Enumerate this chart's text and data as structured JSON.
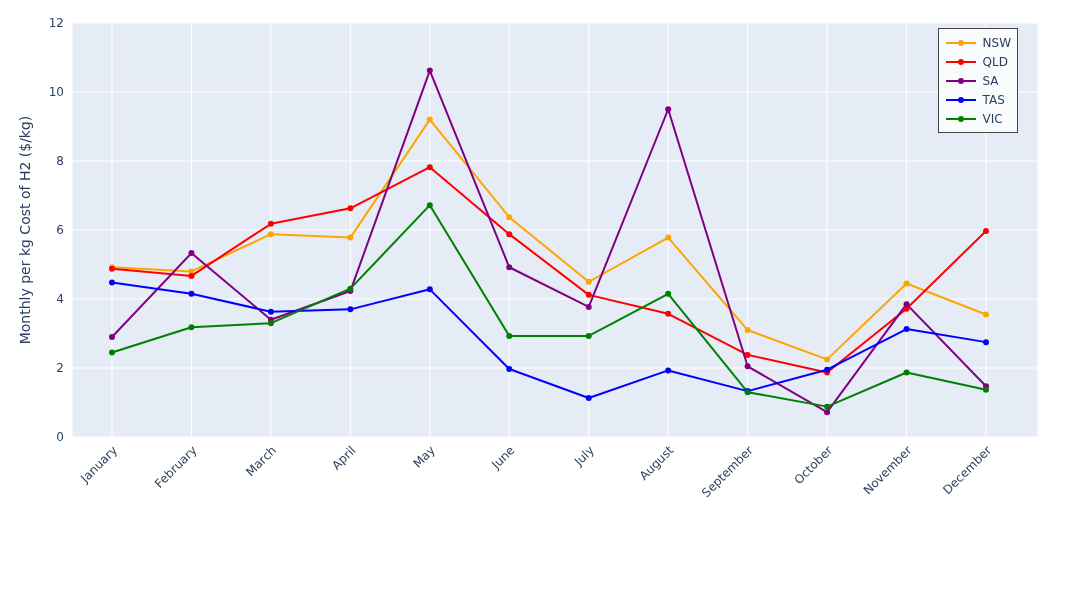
{
  "chart_data": {
    "type": "line",
    "ylabel": "Monthly per kg Cost of H2 ($/kg)",
    "categories": [
      "January",
      "February",
      "March",
      "April",
      "May",
      "June",
      "July",
      "August",
      "September",
      "October",
      "November",
      "December"
    ],
    "series": [
      {
        "name": "NSW",
        "color": "#ffa500",
        "values": [
          4.92,
          4.8,
          5.88,
          5.78,
          9.2,
          6.37,
          4.5,
          5.78,
          3.1,
          2.25,
          4.45,
          3.55
        ]
      },
      {
        "name": "QLD",
        "color": "#ff0000",
        "values": [
          4.88,
          4.67,
          6.18,
          6.63,
          7.82,
          5.88,
          4.12,
          3.57,
          2.38,
          1.87,
          3.72,
          5.97
        ]
      },
      {
        "name": "SA",
        "color": "#800080",
        "values": [
          2.9,
          5.33,
          3.4,
          4.23,
          10.62,
          4.92,
          3.77,
          9.5,
          2.05,
          0.72,
          3.85,
          1.47
        ]
      },
      {
        "name": "TAS",
        "color": "#0000ff",
        "values": [
          4.48,
          4.15,
          3.63,
          3.7,
          4.28,
          1.97,
          1.13,
          1.93,
          1.33,
          1.95,
          3.13,
          2.75
        ]
      },
      {
        "name": "VIC",
        "color": "#008000",
        "values": [
          2.45,
          3.18,
          3.3,
          4.3,
          6.72,
          2.93,
          2.93,
          4.15,
          1.3,
          0.88,
          1.87,
          1.37
        ]
      }
    ],
    "ylim": [
      0,
      12
    ],
    "yticks": [
      0,
      2,
      4,
      6,
      8,
      10,
      12
    ],
    "grid": true,
    "legend": "top right",
    "marker": "circle",
    "line_style": "solid"
  }
}
